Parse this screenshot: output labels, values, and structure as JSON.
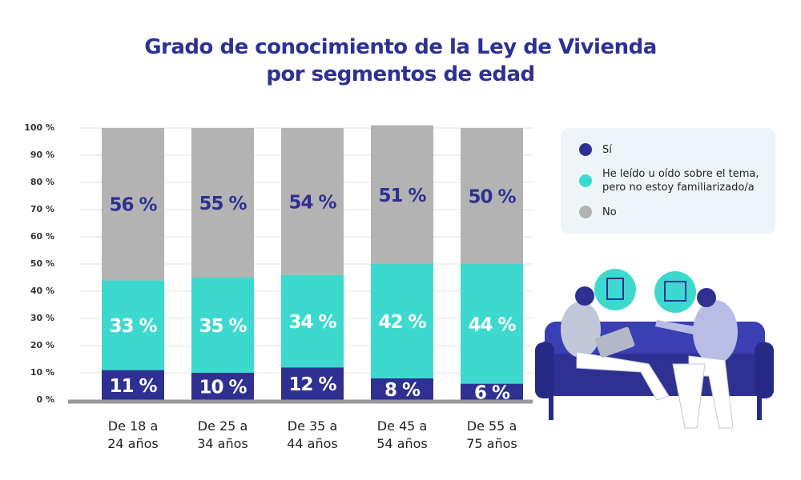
{
  "chart_data": {
    "type": "stacked_bar",
    "title": "Grado de conocimiento de la Ley de Vivienda\npor segmentos de edad",
    "categories": [
      "De 18 a\n24 años",
      "De 25 a\n34 años",
      "De 35 a\n44 años",
      "De 45 a\n54 años",
      "De 55 a\n75 años"
    ],
    "series": [
      {
        "name": "Sí",
        "color": "#2e3192",
        "values": [
          11,
          10,
          12,
          8,
          6
        ],
        "value_labels": [
          "11 %",
          "10 %",
          "12 %",
          "8 %",
          "6 %"
        ]
      },
      {
        "name": "He leído u oído sobre el tema,\npero no estoy familiarizado/a",
        "color": "#3dd9cf",
        "values": [
          33,
          35,
          34,
          42,
          44
        ],
        "value_labels": [
          "33 %",
          "35 %",
          "34 %",
          "42 %",
          "44 %"
        ]
      },
      {
        "name": "No",
        "color": "#b3b3b3",
        "values": [
          56,
          55,
          54,
          51,
          50
        ],
        "value_labels": [
          "56 %",
          "55 %",
          "54 %",
          "51 %",
          "50 %"
        ]
      }
    ],
    "ylim": [
      0,
      100
    ],
    "yticks": [
      {
        "value": 0,
        "label": "0 %"
      },
      {
        "value": 10,
        "label": "10 %"
      },
      {
        "value": 20,
        "label": "20 %"
      },
      {
        "value": 30,
        "label": "30 %"
      },
      {
        "value": 40,
        "label": "40 %"
      },
      {
        "value": 50,
        "label": "50 %"
      },
      {
        "value": 60,
        "label": "60 %"
      },
      {
        "value": 70,
        "label": "70 %"
      },
      {
        "value": 80,
        "label": "80 %"
      },
      {
        "value": 90,
        "label": "90 %"
      },
      {
        "value": 100,
        "label": "100 %"
      }
    ],
    "grid": true,
    "legend": "right"
  }
}
